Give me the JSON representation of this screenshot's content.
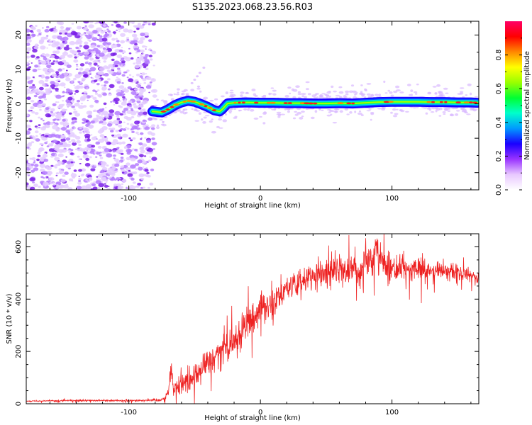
{
  "title": "S135.2023.068.23.56.R03",
  "chart_data": [
    {
      "type": "heatmap",
      "panel": "top",
      "xlabel": "Height of straight line (km)",
      "ylabel": "Frequency (Hz)",
      "xlim": [
        -178,
        166
      ],
      "ylim": [
        -25,
        24
      ],
      "xticks": [
        -100,
        0,
        100
      ],
      "xtick_labels": [
        "-100",
        "0",
        "100"
      ],
      "yticks": [
        -20,
        -10,
        0,
        10,
        20
      ],
      "ytick_labels": [
        "-20",
        "-10",
        "0",
        "10",
        "20"
      ],
      "grid": false,
      "noise_region_x": [
        -178,
        -82
      ],
      "ridge": {
        "x": [
          -82,
          -75,
          -70,
          -65,
          -60,
          -55,
          -50,
          -45,
          -40,
          -35,
          -31,
          -29,
          -25,
          -20,
          -10,
          0,
          10,
          20,
          30,
          40,
          50,
          60,
          70,
          80,
          90,
          100,
          110,
          120,
          130,
          140,
          150,
          160,
          165
        ],
        "y": [
          -2.2,
          -2.5,
          -1.6,
          -0.4,
          0.4,
          0.9,
          0.6,
          -0.1,
          -0.9,
          -1.9,
          -2.2,
          -1.6,
          0.1,
          0.3,
          0.4,
          0.3,
          0.3,
          0.2,
          0.2,
          0.1,
          0.1,
          0.2,
          0.1,
          0.3,
          0.5,
          0.6,
          0.6,
          0.6,
          0.5,
          0.5,
          0.4,
          0.4,
          0.3
        ]
      },
      "colorbar": {
        "label": "Normalized spectral amplitude",
        "range": [
          0,
          1
        ],
        "ticks": [
          0.0,
          0.2,
          0.4,
          0.6,
          0.8
        ],
        "tick_labels": [
          "0.0",
          "0.2",
          "0.4",
          "0.6",
          "0.8"
        ],
        "colormap": [
          "#ffffff",
          "#e8c8ff",
          "#9933ff",
          "#1a00ff",
          "#0099ff",
          "#00ffcc",
          "#00ff33",
          "#99ff00",
          "#ffff00",
          "#ff8800",
          "#ff0000",
          "#ff0066"
        ]
      }
    },
    {
      "type": "line",
      "panel": "bottom",
      "xlabel": "Height of straight line (km)",
      "ylabel": "SNR (10 * v/v)",
      "xlim": [
        -178,
        166
      ],
      "ylim": [
        0,
        650
      ],
      "xticks": [
        -100,
        0,
        100
      ],
      "xtick_labels": [
        "-100",
        "0",
        "100"
      ],
      "yticks": [
        0,
        200,
        400,
        600
      ],
      "ytick_labels": [
        "0",
        "200",
        "400",
        "600"
      ],
      "grid": false,
      "series": [
        {
          "color": "#ee2222",
          "x": [
            -178,
            -150,
            -120,
            -100,
            -90,
            -80,
            -75,
            -72,
            -70,
            -68,
            -66,
            -64,
            -60,
            -55,
            -50,
            -40,
            -30,
            -20,
            -10,
            0,
            10,
            20,
            30,
            40,
            50,
            60,
            70,
            80,
            85,
            88,
            90,
            95,
            100,
            110,
            120,
            130,
            140,
            150,
            160,
            166
          ],
          "y": [
            10,
            12,
            12,
            12,
            13,
            14,
            15,
            25,
            45,
            140,
            50,
            65,
            75,
            90,
            110,
            150,
            200,
            250,
            300,
            350,
            400,
            440,
            470,
            490,
            500,
            510,
            515,
            520,
            550,
            600,
            560,
            525,
            520,
            520,
            515,
            510,
            505,
            500,
            490,
            480
          ],
          "noise": [
            2,
            3,
            3,
            3,
            3,
            4,
            5,
            8,
            15,
            35,
            25,
            30,
            35,
            40,
            45,
            50,
            55,
            55,
            55,
            50,
            45,
            40,
            40,
            40,
            45,
            50,
            55,
            60,
            70,
            60,
            55,
            50,
            45,
            40,
            35,
            30,
            25,
            25,
            20,
            15
          ]
        }
      ]
    }
  ]
}
